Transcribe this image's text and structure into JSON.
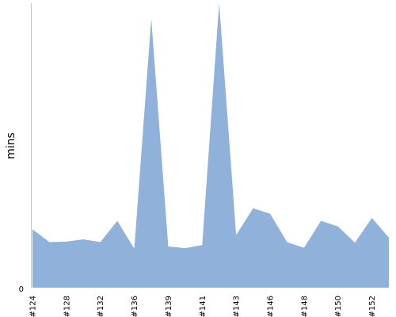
{
  "chart_data": {
    "type": "area",
    "xlabel": "",
    "ylabel": "mins",
    "y_tick_labels": [
      "0"
    ],
    "x_tick_labels": [
      "#124",
      "#128",
      "#132",
      "#136",
      "#139",
      "#141",
      "#143",
      "#146",
      "#148",
      "#150",
      "#152"
    ],
    "ylim": [
      0,
      100
    ],
    "grid": false,
    "legend": "none",
    "series": [
      {
        "color": "#8fb1da",
        "values": [
          20.5,
          16,
          16.2,
          17,
          16,
          23.5,
          13.7,
          94.6,
          14.5,
          13.9,
          15,
          100,
          18.5,
          27.9,
          26,
          16,
          14,
          23.5,
          21.5,
          15.8,
          24.5,
          17.6
        ]
      }
    ]
  }
}
